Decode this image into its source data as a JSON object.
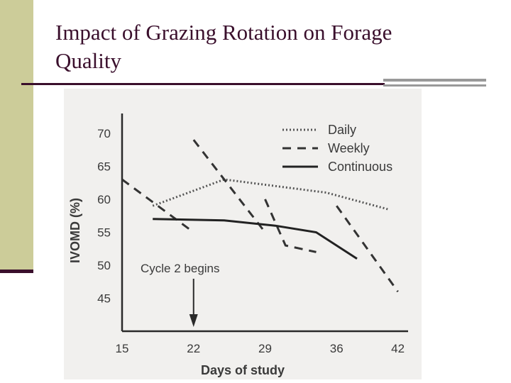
{
  "slide": {
    "title_line1": "Impact of Grazing Rotation on Forage",
    "title_line2": "Quality"
  },
  "chart_data": {
    "type": "line",
    "xlabel": "Days of study",
    "ylabel": "IVOMD (%)",
    "x_ticks": [
      15,
      22,
      29,
      36,
      42
    ],
    "y_ticks": [
      45,
      50,
      55,
      60,
      65,
      70
    ],
    "xlim": [
      15,
      43
    ],
    "ylim": [
      40,
      73
    ],
    "legend_position": "top-right",
    "annotation": {
      "text": "Cycle 2 begins",
      "x": 22
    },
    "series": [
      {
        "name": "Daily",
        "style": "dotted",
        "color": "#555555",
        "segments": [
          [
            [
              18,
              59
            ],
            [
              25,
              63
            ],
            [
              30,
              62
            ],
            [
              35,
              61
            ],
            [
              41,
              58.5
            ]
          ]
        ]
      },
      {
        "name": "Weekly",
        "style": "dashed",
        "color": "#333333",
        "segments": [
          [
            [
              15,
              63
            ],
            [
              22,
              55
            ]
          ],
          [
            [
              22,
              69
            ],
            [
              29,
              55
            ]
          ],
          [
            [
              29,
              60
            ],
            [
              31,
              53
            ],
            [
              34,
              52
            ]
          ],
          [
            [
              36,
              59
            ],
            [
              42,
              46
            ]
          ]
        ]
      },
      {
        "name": "Continuous",
        "style": "solid",
        "color": "#222222",
        "segments": [
          [
            [
              18,
              57
            ],
            [
              25,
              56.8
            ],
            [
              30,
              56
            ],
            [
              34,
              55
            ],
            [
              38,
              51
            ]
          ]
        ]
      }
    ]
  }
}
